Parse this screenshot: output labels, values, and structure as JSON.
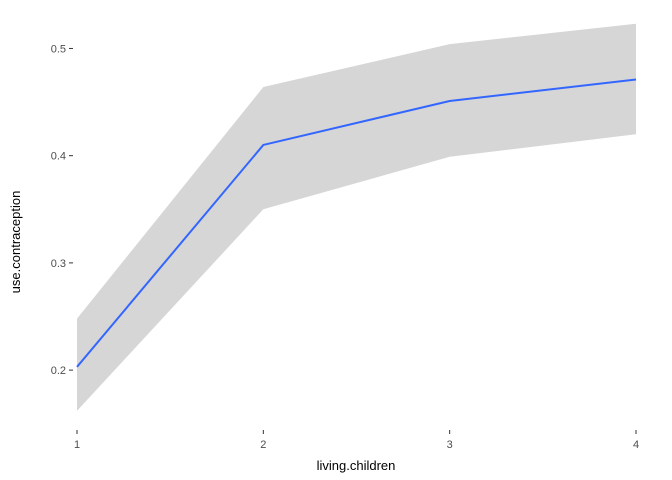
{
  "chart_data": {
    "type": "line",
    "xlabel": "living.children",
    "ylabel": "use.contraception",
    "x": [
      1,
      2,
      3,
      4
    ],
    "series": [
      {
        "values": [
          0.203,
          0.41,
          0.451,
          0.471
        ],
        "lower": [
          0.162,
          0.35,
          0.399,
          0.42
        ],
        "upper": [
          0.248,
          0.464,
          0.504,
          0.523
        ]
      }
    ],
    "xticks": [
      1,
      2,
      3,
      4
    ],
    "xtick_labels": [
      "1",
      "2",
      "3",
      "4"
    ],
    "yticks": [
      0.2,
      0.3,
      0.4,
      0.5
    ],
    "ytick_labels": [
      "0.2",
      "0.3",
      "0.4",
      "0.5"
    ],
    "xlim": [
      1,
      4
    ],
    "ylim": [
      0.146,
      0.534
    ],
    "grid": false,
    "legend": "none",
    "colors": {
      "line": "#3366ff",
      "ribbon": "#d6d6d6",
      "tick": "#333333",
      "tick_label": "#4d4d4d",
      "axis_title": "#000000"
    }
  }
}
